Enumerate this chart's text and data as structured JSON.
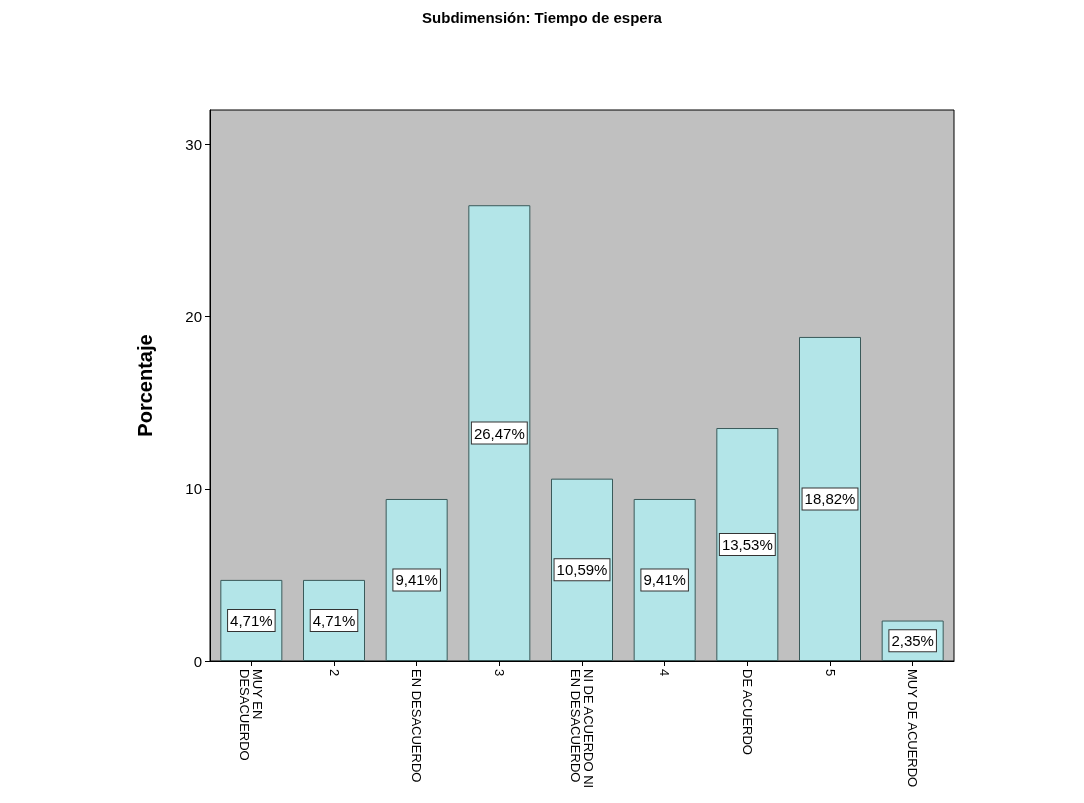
{
  "chart_data": {
    "type": "bar",
    "title": "Subdimensión: Tiempo de espera",
    "ylabel": "Porcentaje",
    "categories": [
      "MUY EN DESACUERDO",
      "2",
      "EN DESACUERDO",
      "3",
      "NI DE ACUERDO NI EN DESACUERDO",
      "4",
      "DE ACUERDO",
      "5",
      "MUY DE ACUERDO"
    ],
    "values": [
      4.71,
      4.71,
      9.41,
      26.47,
      10.59,
      9.41,
      13.53,
      18.82,
      2.35
    ],
    "value_labels": [
      "4,71%",
      "4,71%",
      "9,41%",
      "26,47%",
      "10,59%",
      "9,41%",
      "13,53%",
      "18,82%",
      "2,35%"
    ],
    "color": "#b3e5e8",
    "ylim": [
      0,
      32
    ],
    "yticks": [
      0,
      10,
      20,
      30
    ],
    "grid": false
  }
}
